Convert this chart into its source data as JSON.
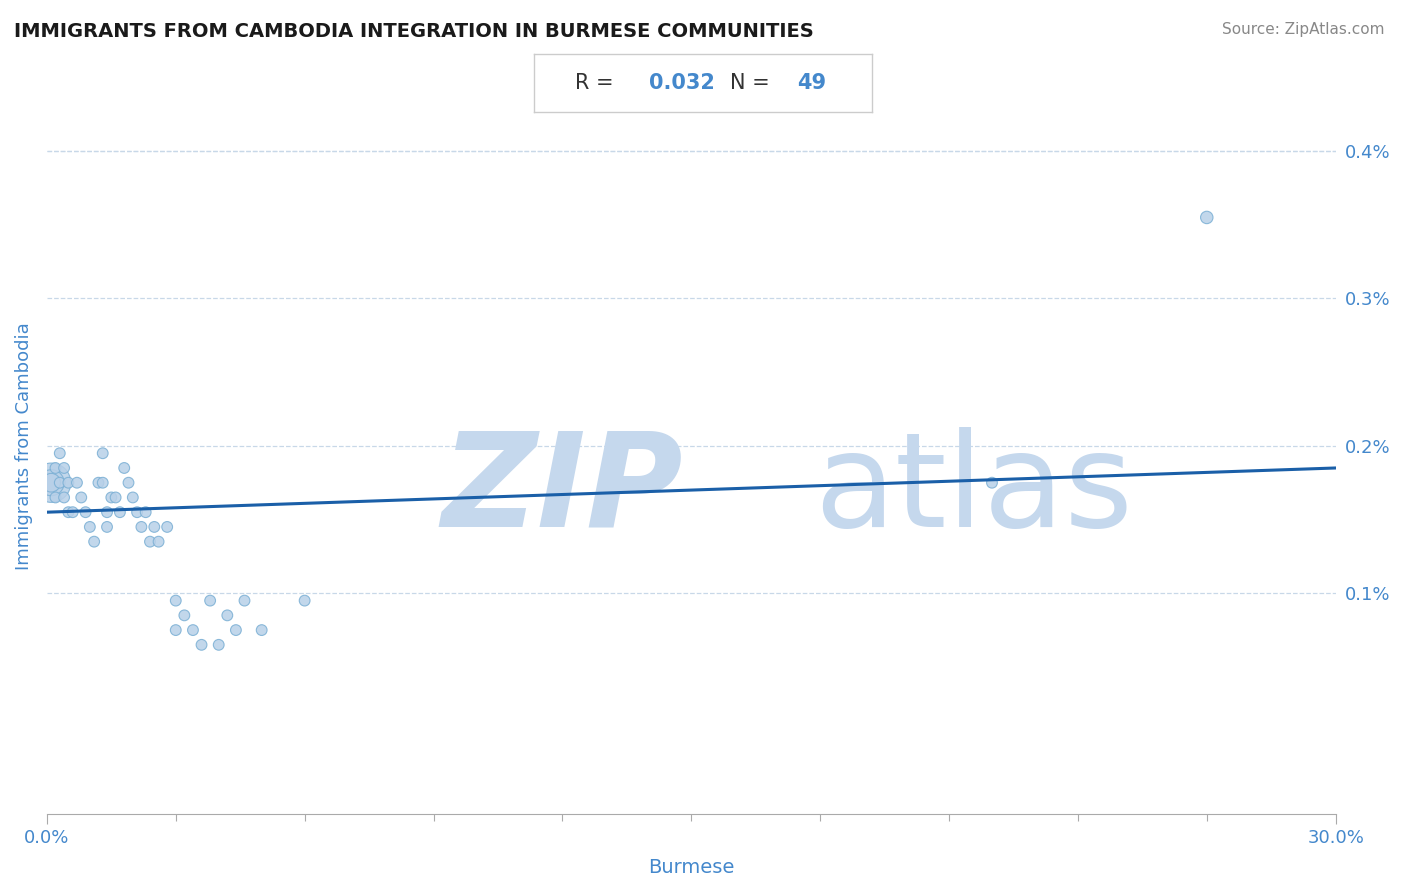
{
  "title": "IMMIGRANTS FROM CAMBODIA INTEGRATION IN BURMESE COMMUNITIES",
  "source": "Source: ZipAtlas.com",
  "xlabel": "Burmese",
  "ylabel": "Immigrants from Cambodia",
  "R": 0.032,
  "N": 49,
  "xlim": [
    0.0,
    0.3
  ],
  "ylim": [
    -0.0005,
    0.0045
  ],
  "xtick_labels": [
    "0.0%",
    "30.0%"
  ],
  "ytick_labels": [
    "0.1%",
    "0.2%",
    "0.3%",
    "0.4%"
  ],
  "ytick_values": [
    0.001,
    0.002,
    0.003,
    0.004
  ],
  "scatter_color": "#b8d0e8",
  "scatter_edge_color": "#7aafd4",
  "line_color": "#1a5fa8",
  "watermark_zip_color": "#c5d8ed",
  "watermark_atlas_color": "#c5d8ed",
  "background_color": "#ffffff",
  "grid_color": "#c8d8e8",
  "title_color": "#1a1a1a",
  "axis_label_color": "#4488cc",
  "tick_color": "#4488cc",
  "scatter_points": [
    [
      0.001,
      0.00175
    ],
    [
      0.001,
      0.00175
    ],
    [
      0.001,
      0.00175
    ],
    [
      0.002,
      0.00185
    ],
    [
      0.002,
      0.00165
    ],
    [
      0.003,
      0.00195
    ],
    [
      0.003,
      0.00175
    ],
    [
      0.004,
      0.00185
    ],
    [
      0.004,
      0.00165
    ],
    [
      0.005,
      0.00175
    ],
    [
      0.005,
      0.00155
    ],
    [
      0.006,
      0.00155
    ],
    [
      0.007,
      0.00175
    ],
    [
      0.008,
      0.00165
    ],
    [
      0.009,
      0.00155
    ],
    [
      0.01,
      0.00145
    ],
    [
      0.011,
      0.00135
    ],
    [
      0.012,
      0.00175
    ],
    [
      0.013,
      0.00195
    ],
    [
      0.013,
      0.00175
    ],
    [
      0.014,
      0.00155
    ],
    [
      0.014,
      0.00145
    ],
    [
      0.015,
      0.00165
    ],
    [
      0.016,
      0.00165
    ],
    [
      0.017,
      0.00155
    ],
    [
      0.018,
      0.00185
    ],
    [
      0.019,
      0.00175
    ],
    [
      0.02,
      0.00165
    ],
    [
      0.021,
      0.00155
    ],
    [
      0.022,
      0.00145
    ],
    [
      0.023,
      0.00155
    ],
    [
      0.024,
      0.00135
    ],
    [
      0.025,
      0.00145
    ],
    [
      0.026,
      0.00135
    ],
    [
      0.028,
      0.00145
    ],
    [
      0.03,
      0.00095
    ],
    [
      0.03,
      0.00075
    ],
    [
      0.032,
      0.00085
    ],
    [
      0.034,
      0.00075
    ],
    [
      0.036,
      0.00065
    ],
    [
      0.038,
      0.00095
    ],
    [
      0.04,
      0.00065
    ],
    [
      0.042,
      0.00085
    ],
    [
      0.044,
      0.00075
    ],
    [
      0.046,
      0.00095
    ],
    [
      0.05,
      0.00075
    ],
    [
      0.06,
      0.00095
    ],
    [
      0.22,
      0.00175
    ],
    [
      0.27,
      0.00355
    ]
  ],
  "scatter_sizes": [
    800,
    350,
    180,
    60,
    60,
    60,
    60,
    60,
    60,
    60,
    60,
    60,
    60,
    60,
    60,
    60,
    60,
    60,
    60,
    60,
    60,
    60,
    60,
    60,
    60,
    60,
    60,
    60,
    60,
    60,
    60,
    60,
    60,
    60,
    60,
    60,
    60,
    60,
    60,
    60,
    60,
    60,
    60,
    60,
    60,
    60,
    60,
    60,
    80
  ],
  "line_x": [
    0.0,
    0.3
  ],
  "line_y": [
    0.00155,
    0.00185
  ]
}
